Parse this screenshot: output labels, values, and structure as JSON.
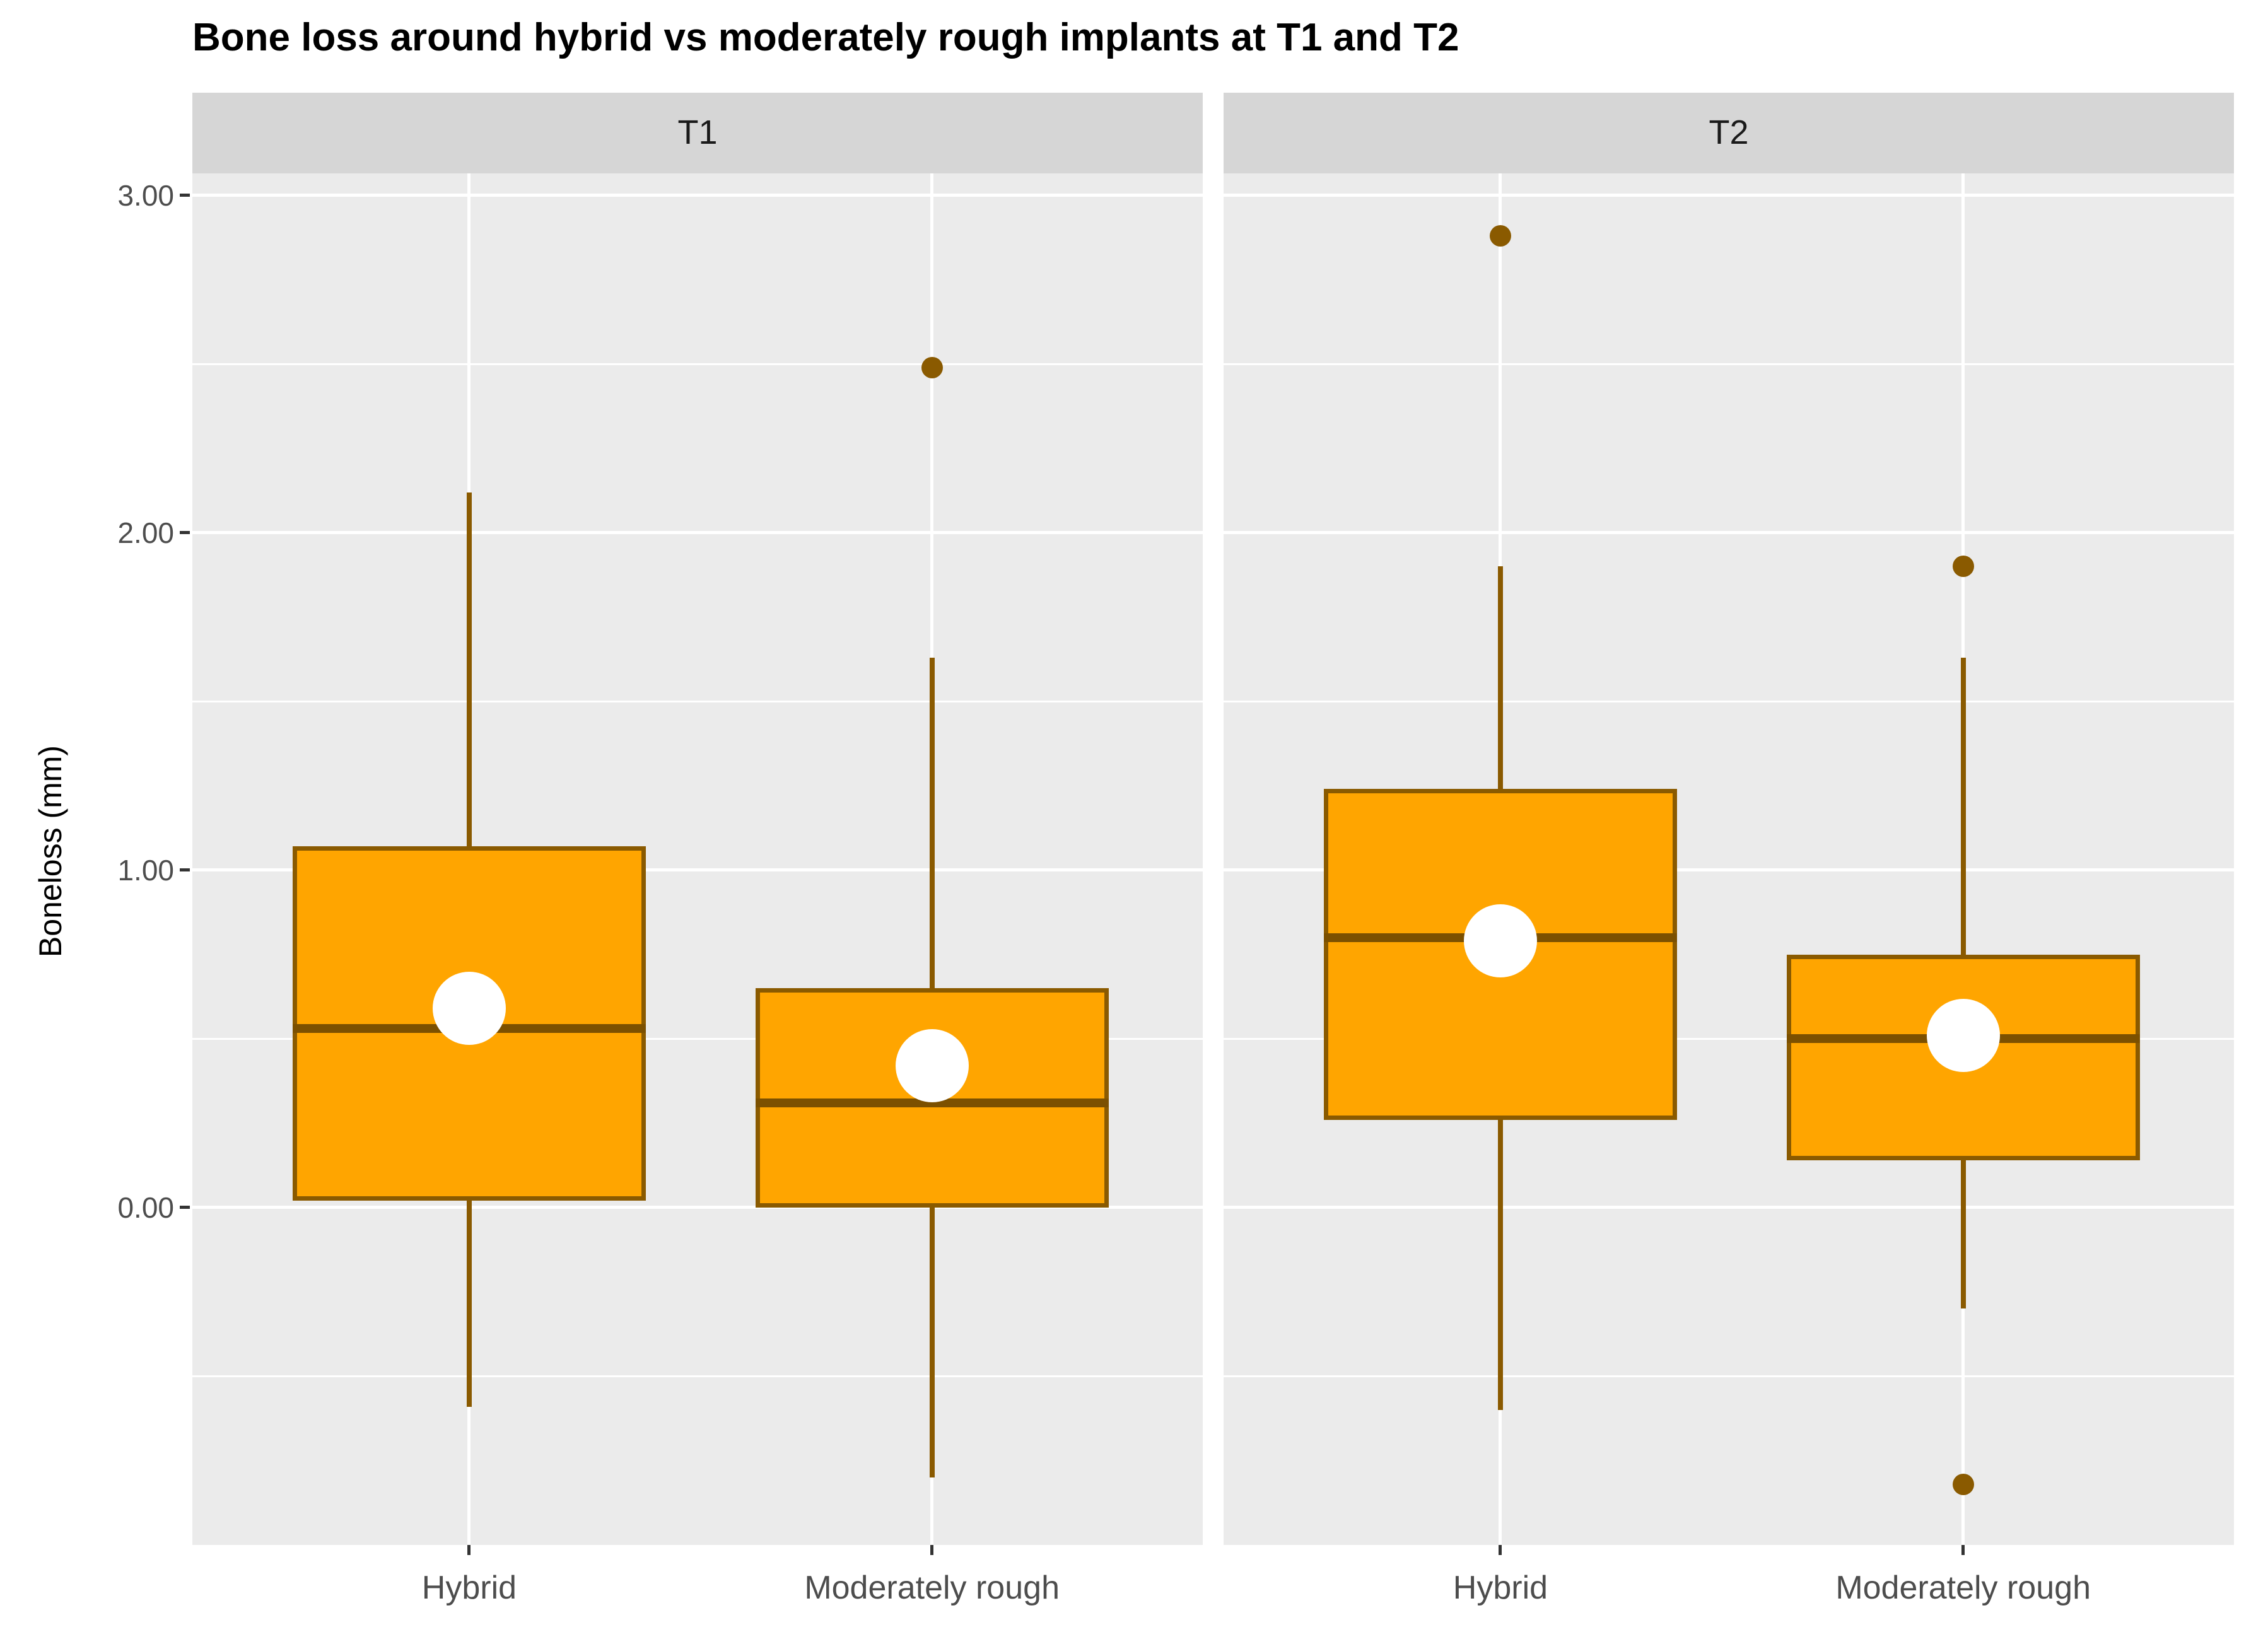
{
  "chart_data": {
    "type": "boxplot",
    "title": "Bone loss around hybrid vs moderately rough implants at T1 and T2",
    "ylabel": "Boneloss (mm)",
    "xlabel": "",
    "ylim": [
      -1.0,
      3.065
    ],
    "yticks": [
      0.0,
      1.0,
      2.0,
      3.0
    ],
    "ytick_labels": [
      "0.00",
      "1.00",
      "2.00",
      "3.00"
    ],
    "minor_gridlines": [
      -0.5,
      0.5,
      1.5,
      2.5
    ],
    "grid": "white-on-gray, major and minor horizontal, major vertical at categories",
    "legend": "none",
    "facets": [
      {
        "label": "T1",
        "boxes": [
          {
            "category": "Hybrid",
            "whisker_low": -0.59,
            "q1": 0.02,
            "median": 0.53,
            "q3": 1.07,
            "whisker_high": 2.12,
            "mean": 0.59,
            "outliers": []
          },
          {
            "category": "Moderately rough",
            "whisker_low": -0.8,
            "q1": 0.0,
            "median": 0.31,
            "q3": 0.65,
            "whisker_high": 1.63,
            "mean": 0.42,
            "outliers": [
              2.49
            ]
          }
        ]
      },
      {
        "label": "T2",
        "boxes": [
          {
            "category": "Hybrid",
            "whisker_low": -0.6,
            "q1": 0.26,
            "median": 0.8,
            "q3": 1.24,
            "whisker_high": 1.9,
            "mean": 0.79,
            "outliers": [
              2.88
            ]
          },
          {
            "category": "Moderately rough",
            "whisker_low": -0.3,
            "q1": 0.14,
            "median": 0.5,
            "q3": 0.75,
            "whisker_high": 1.63,
            "mean": 0.51,
            "outliers": [
              1.9,
              -0.82
            ]
          }
        ]
      }
    ],
    "colors": {
      "box_fill": "#ffa500",
      "box_border": "#8a5a00",
      "median_line": "#7c5000",
      "mean_dot": "#ffffff",
      "outlier_dot": "#8a5a00",
      "panel_bg": "#ebebeb",
      "strip_bg": "#d6d6d6",
      "gridline": "#ffffff",
      "tick_mark": "#333333",
      "axis_text": "#4d4d4d",
      "title_text": "#000000"
    }
  }
}
